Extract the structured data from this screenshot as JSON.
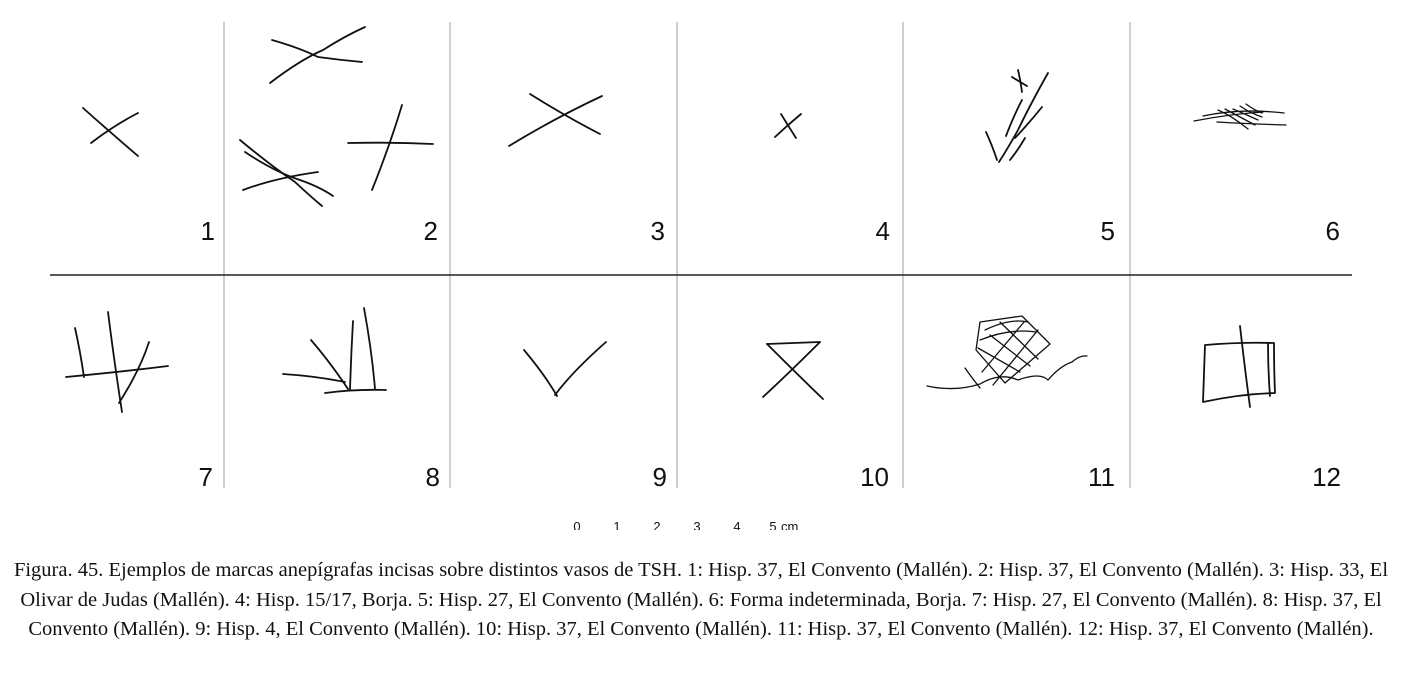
{
  "panels": [
    {
      "number": "1",
      "mark": "x-cross"
    },
    {
      "number": "2",
      "mark": "multiple-crosses"
    },
    {
      "number": "3",
      "mark": "x-cross"
    },
    {
      "number": "4",
      "mark": "small-x-cross"
    },
    {
      "number": "5",
      "mark": "branch"
    },
    {
      "number": "6",
      "mark": "hatched-fan"
    },
    {
      "number": "7",
      "mark": "crossed-lines"
    },
    {
      "number": "8",
      "mark": "vertical-strokes"
    },
    {
      "number": "9",
      "mark": "v-shape"
    },
    {
      "number": "10",
      "mark": "hourglass"
    },
    {
      "number": "11",
      "mark": "grid-with-wavy-line"
    },
    {
      "number": "12",
      "mark": "crossed-square"
    }
  ],
  "scale_bar": {
    "ticks": [
      "0",
      "1",
      "2",
      "3",
      "4",
      "5"
    ],
    "unit": "cm"
  },
  "caption": "Figura. 45. Ejemplos de marcas anepígrafas incisas sobre distintos vasos de TSH. 1: Hisp. 37, El Convento (Mallén). 2: Hisp. 37, El Convento (Mallén). 3: Hisp. 33, El Olivar de Judas (Mallén). 4: Hisp. 15/17, Borja. 5: Hisp. 27, El Convento (Mallén). 6: Forma indeterminada, Borja. 7: Hisp. 27, El Convento (Mallén). 8: Hisp. 37, El Convento (Mallén). 9: Hisp. 4, El Convento (Mallén). 10: Hisp. 37, El Convento (Mallén). 11: Hisp. 37, El Convento (Mallén). 12: Hisp. 37, El Convento (Mallén)."
}
